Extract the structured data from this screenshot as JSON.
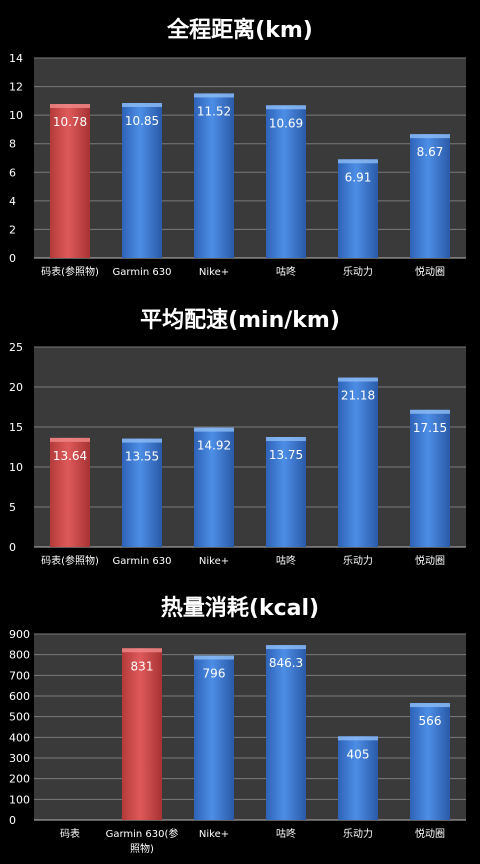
{
  "chart_data": [
    {
      "type": "bar",
      "title": "全程距离(km)",
      "categories": [
        "码表(参照物)",
        "Garmin 630",
        "Nike+",
        "咕咚",
        "乐动力",
        "悦动圈"
      ],
      "values": [
        10.78,
        10.85,
        11.52,
        10.69,
        6.91,
        8.67
      ],
      "value_labels": [
        "10.78",
        "10.85",
        "11.52",
        "10.69",
        "6.91",
        "8.67"
      ],
      "highlight_index": 0,
      "ylim": [
        0,
        14
      ],
      "yticks": [
        0,
        2,
        4,
        6,
        8,
        10,
        12,
        14
      ],
      "grid": true
    },
    {
      "type": "bar",
      "title": "平均配速(min/km)",
      "categories": [
        "码表(参照物)",
        "Garmin 630",
        "Nike+",
        "咕咚",
        "乐动力",
        "悦动圈"
      ],
      "values": [
        13.64,
        13.55,
        14.92,
        13.75,
        21.18,
        17.15
      ],
      "value_labels": [
        "13.64",
        "13.55",
        "14.92",
        "13.75",
        "21.18",
        "17.15"
      ],
      "highlight_index": 0,
      "ylim": [
        0,
        25
      ],
      "yticks": [
        0,
        5,
        10,
        15,
        20,
        25
      ],
      "grid": true
    },
    {
      "type": "bar",
      "title": "热量消耗(kcal)",
      "categories": [
        "码表",
        "Garmin 630(参照物)",
        "Nike+",
        "咕咚",
        "乐动力",
        "悦动圈"
      ],
      "category_lines": [
        [
          "码表"
        ],
        [
          "Garmin 630(参",
          "照物)"
        ],
        [
          "Nike+"
        ],
        [
          "咕咚"
        ],
        [
          "乐动力"
        ],
        [
          "悦动圈"
        ]
      ],
      "values": [
        null,
        831,
        796,
        846.3,
        405,
        566
      ],
      "value_labels": [
        "",
        "831",
        "796",
        "846.3",
        "405",
        "566"
      ],
      "highlight_index": 1,
      "ylim": [
        0,
        900
      ],
      "yticks": [
        0,
        100,
        200,
        300,
        400,
        500,
        600,
        700,
        800,
        900
      ],
      "grid": true
    }
  ],
  "colors": {
    "background": "#000000",
    "plot_area": "#3a3a3a",
    "grid": "#7a7a7a",
    "blue_bar": "#3f7fd9",
    "red_bar": "#d24a4a",
    "text": "#ffffff"
  }
}
